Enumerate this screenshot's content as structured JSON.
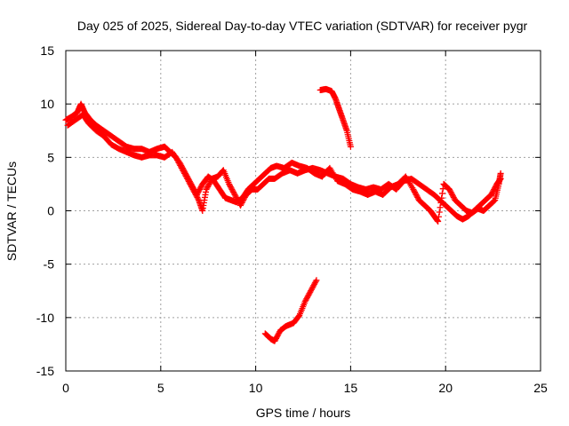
{
  "chart_data": {
    "type": "scatter",
    "title": "Day 025 of 2025, Sidereal Day-to-day VTEC variation (SDTVAR) for receiver pygr",
    "xlabel": "GPS time / hours",
    "ylabel": "SDTVAR / TECUs",
    "xlim": [
      0,
      25
    ],
    "ylim": [
      -15,
      15
    ],
    "xticks": [
      0,
      5,
      10,
      15,
      20,
      25
    ],
    "yticks": [
      -15,
      -10,
      -5,
      0,
      5,
      10,
      15
    ],
    "grid": true,
    "marker": "+",
    "series_color": "#ff0000",
    "series": [
      {
        "name": "main trace",
        "points": [
          [
            0.0,
            8.5
          ],
          [
            0.3,
            8.8
          ],
          [
            0.6,
            9.2
          ],
          [
            0.8,
            10.0
          ],
          [
            1.0,
            9.2
          ],
          [
            1.3,
            8.5
          ],
          [
            1.6,
            8.0
          ],
          [
            2.0,
            7.5
          ],
          [
            2.4,
            7.0
          ],
          [
            2.8,
            6.5
          ],
          [
            3.2,
            6.0
          ],
          [
            3.6,
            5.8
          ],
          [
            4.0,
            5.8
          ],
          [
            4.4,
            5.5
          ],
          [
            4.8,
            5.8
          ],
          [
            5.2,
            6.0
          ],
          [
            5.5,
            5.5
          ],
          [
            5.8,
            5.0
          ],
          [
            6.1,
            4.0
          ],
          [
            6.4,
            3.0
          ],
          [
            6.7,
            2.0
          ],
          [
            7.0,
            1.0
          ],
          [
            7.2,
            0.0
          ],
          [
            7.4,
            2.0
          ],
          [
            7.7,
            3.0
          ],
          [
            8.0,
            3.2
          ],
          [
            8.3,
            3.8
          ],
          [
            8.6,
            2.5
          ],
          [
            8.9,
            1.5
          ],
          [
            9.2,
            0.5
          ],
          [
            9.5,
            1.5
          ],
          [
            9.8,
            2.0
          ],
          [
            10.1,
            2.0
          ],
          [
            10.4,
            2.5
          ],
          [
            10.7,
            3.0
          ],
          [
            11.0,
            3.0
          ],
          [
            11.4,
            3.5
          ],
          [
            11.8,
            3.8
          ],
          [
            12.2,
            3.5
          ],
          [
            12.6,
            3.8
          ],
          [
            13.0,
            4.0
          ],
          [
            13.4,
            3.8
          ],
          [
            13.8,
            3.5
          ],
          [
            14.2,
            3.2
          ],
          [
            14.6,
            3.0
          ],
          [
            15.0,
            2.5
          ],
          [
            15.4,
            2.2
          ],
          [
            15.8,
            2.0
          ],
          [
            16.2,
            2.2
          ],
          [
            16.6,
            2.0
          ],
          [
            17.0,
            2.5
          ],
          [
            17.4,
            2.0
          ],
          [
            17.8,
            2.8
          ],
          [
            18.2,
            3.0
          ],
          [
            18.6,
            2.5
          ],
          [
            19.0,
            2.0
          ],
          [
            19.4,
            1.5
          ],
          [
            19.7,
            1.0
          ],
          [
            20.0,
            0.5
          ],
          [
            20.3,
            0.0
          ],
          [
            20.6,
            -0.5
          ],
          [
            20.9,
            -0.8
          ],
          [
            21.2,
            -0.5
          ],
          [
            21.5,
            0.0
          ],
          [
            21.8,
            0.5
          ],
          [
            22.1,
            1.0
          ],
          [
            22.4,
            1.5
          ],
          [
            22.7,
            2.5
          ],
          [
            22.9,
            3.0
          ]
        ]
      },
      {
        "name": "secondary trace",
        "points": [
          [
            0.1,
            8.0
          ],
          [
            0.5,
            8.5
          ],
          [
            0.9,
            9.0
          ],
          [
            1.2,
            8.2
          ],
          [
            1.6,
            7.5
          ],
          [
            2.0,
            7.0
          ],
          [
            2.4,
            6.2
          ],
          [
            2.8,
            5.8
          ],
          [
            3.2,
            5.5
          ],
          [
            3.6,
            5.2
          ],
          [
            4.0,
            5.0
          ],
          [
            4.4,
            5.2
          ],
          [
            4.8,
            5.2
          ],
          [
            5.2,
            5.0
          ],
          [
            5.6,
            5.5
          ],
          [
            6.0,
            4.5
          ],
          [
            6.3,
            3.5
          ],
          [
            6.6,
            2.5
          ],
          [
            6.9,
            1.5
          ],
          [
            7.2,
            2.5
          ],
          [
            7.5,
            3.2
          ],
          [
            7.8,
            2.8
          ],
          [
            8.1,
            2.0
          ],
          [
            8.4,
            1.2
          ],
          [
            8.7,
            1.0
          ],
          [
            9.0,
            0.8
          ],
          [
            9.3,
            1.2
          ],
          [
            9.6,
            2.0
          ],
          [
            9.9,
            2.5
          ],
          [
            10.2,
            3.0
          ],
          [
            10.5,
            3.5
          ],
          [
            10.8,
            4.0
          ],
          [
            11.1,
            4.2
          ],
          [
            11.5,
            4.0
          ],
          [
            11.9,
            4.5
          ],
          [
            12.3,
            4.2
          ],
          [
            12.7,
            4.0
          ],
          [
            13.1,
            3.5
          ],
          [
            13.5,
            3.2
          ],
          [
            13.9,
            4.0
          ],
          [
            14.3,
            2.8
          ],
          [
            14.7,
            2.5
          ],
          [
            15.1,
            2.0
          ],
          [
            15.5,
            1.8
          ],
          [
            15.9,
            1.5
          ],
          [
            16.3,
            1.8
          ],
          [
            16.7,
            1.5
          ],
          [
            17.1,
            2.2
          ],
          [
            17.5,
            2.5
          ],
          [
            17.9,
            3.2
          ],
          [
            18.3,
            2.0
          ],
          [
            18.6,
            1.0
          ],
          [
            18.9,
            0.5
          ],
          [
            19.2,
            0.0
          ],
          [
            19.4,
            -0.5
          ],
          [
            19.6,
            -1.0
          ],
          [
            19.9,
            2.5
          ],
          [
            20.2,
            2.0
          ],
          [
            20.5,
            1.0
          ],
          [
            20.8,
            0.5
          ],
          [
            21.1,
            0.0
          ],
          [
            21.4,
            -0.2
          ],
          [
            21.7,
            0.2
          ],
          [
            22.0,
            0.0
          ],
          [
            22.3,
            0.5
          ],
          [
            22.6,
            1.0
          ],
          [
            22.8,
            2.5
          ],
          [
            22.9,
            3.5
          ]
        ]
      },
      {
        "name": "upper segment",
        "points": [
          [
            13.4,
            11.3
          ],
          [
            13.7,
            11.4
          ],
          [
            14.0,
            11.2
          ],
          [
            14.2,
            10.5
          ],
          [
            14.4,
            9.5
          ],
          [
            14.6,
            8.5
          ],
          [
            14.8,
            7.5
          ],
          [
            15.0,
            6.0
          ]
        ]
      },
      {
        "name": "lower segment",
        "points": [
          [
            10.5,
            -11.5
          ],
          [
            10.8,
            -12.0
          ],
          [
            11.0,
            -12.2
          ],
          [
            11.3,
            -11.2
          ],
          [
            11.6,
            -10.8
          ],
          [
            12.0,
            -10.5
          ],
          [
            12.3,
            -9.8
          ],
          [
            12.6,
            -8.5
          ],
          [
            12.9,
            -7.5
          ],
          [
            13.2,
            -6.5
          ]
        ]
      }
    ]
  }
}
